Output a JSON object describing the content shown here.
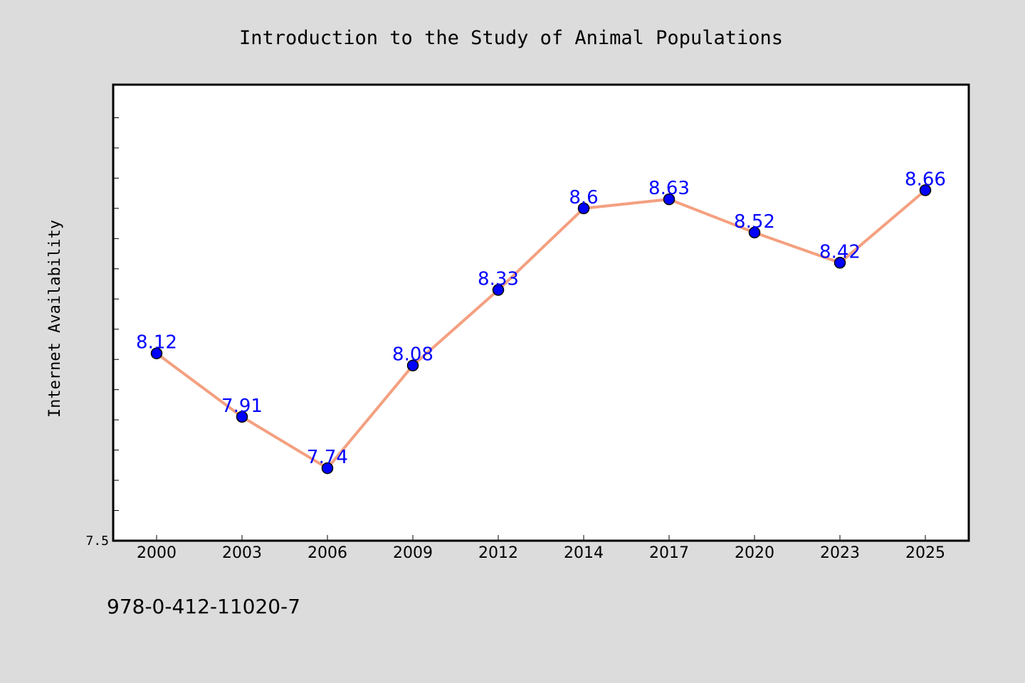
{
  "chart_data": {
    "type": "line",
    "title": "Introduction to the Study of Animal Populations",
    "xlabel": "",
    "ylabel": "Internet Availability",
    "categories": [
      "2000",
      "2003",
      "2006",
      "2009",
      "2012",
      "2014",
      "2017",
      "2020",
      "2023",
      "2025"
    ],
    "series": [
      {
        "values": [
          8.12,
          7.91,
          7.74,
          8.08,
          8.33,
          8.6,
          8.63,
          8.52,
          8.42,
          8.66
        ],
        "data_labels": [
          "8.12",
          "7.91",
          "7.74",
          "8.08",
          "8.33",
          "8.6",
          "8.63",
          "8.52",
          "8.42",
          "8.66"
        ]
      }
    ],
    "ylim": [
      7.5,
      9.0
    ],
    "ytick_labels": [
      "7.5"
    ],
    "grid": false,
    "colors": {
      "background": "#dcdcdc",
      "plot_background": "#ffffff",
      "line": "#f4a080",
      "marker_fill": "#0000ff",
      "marker_edge": "#000000",
      "data_label": "#0000ff"
    }
  },
  "footer": {
    "isbn": "978-0-412-11020-7"
  }
}
